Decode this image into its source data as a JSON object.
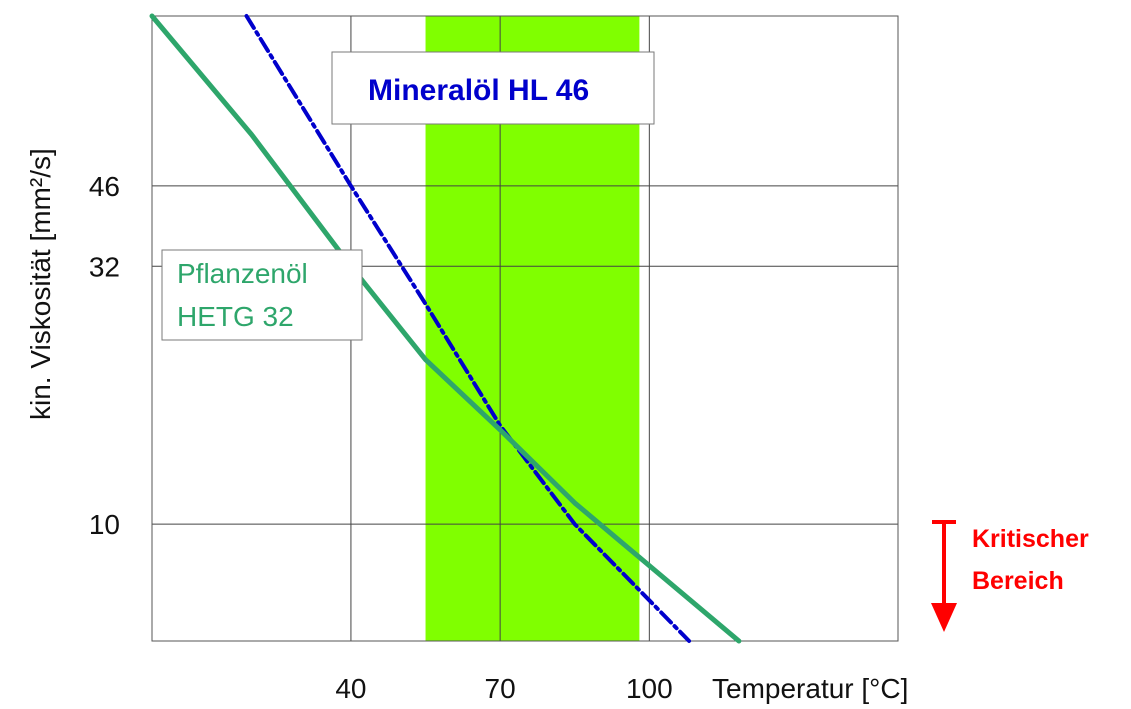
{
  "chart_data": {
    "type": "line",
    "title": "",
    "xlabel": "Temperatur [°C]",
    "ylabel": "kin. Viskosität [mm²/s]",
    "x_ticks": [
      40,
      70,
      100
    ],
    "y_ticks": [
      10,
      32,
      46
    ],
    "xlim": [
      0,
      150
    ],
    "ylim_log": [
      5.9,
      99
    ],
    "y_scale": "log",
    "grid": true,
    "highlight_band": {
      "x_from": 55,
      "x_to": 98,
      "color": "#80ff00"
    },
    "series": [
      {
        "name": "Mineralöl HL 46",
        "color": "#0000cc",
        "style": "dash-dot",
        "points": [
          [
            19,
            99
          ],
          [
            40,
            46
          ],
          [
            55,
            27
          ],
          [
            70,
            15.6
          ],
          [
            85,
            10
          ],
          [
            108,
            5.9
          ]
        ]
      },
      {
        "name": "Pflanzenöl HETG 32",
        "color": "#2ea66b",
        "style": "solid",
        "label_lines": [
          "Pflanzenöl",
          "HETG 32"
        ],
        "points": [
          [
            0,
            99
          ],
          [
            20,
            58
          ],
          [
            40,
            32
          ],
          [
            55,
            21
          ],
          [
            70,
            15.3
          ],
          [
            85,
            11
          ],
          [
            118,
            5.9
          ]
        ]
      }
    ],
    "annotation": {
      "lines": [
        "Kritischer",
        "Bereich"
      ],
      "color": "#ff0000"
    }
  }
}
